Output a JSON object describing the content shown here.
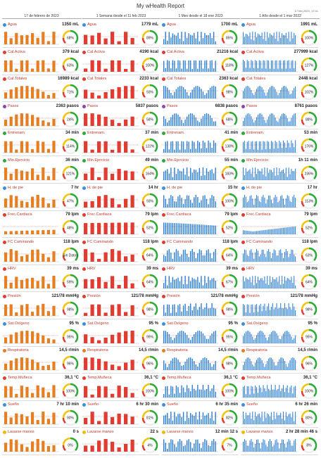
{
  "header": {
    "title": "My wHealth Report",
    "date": "17 feb 2023, 17:41"
  },
  "columns": [
    "17 de febrero de 2023",
    "1 Semana desde el 11 feb 2023",
    "1 Mes desde el 18 ene 2023",
    "1 Año desde el 1 mar 2022"
  ],
  "rows": [
    {
      "name": "Agua",
      "cells": [
        {
          "value": "1350 mL",
          "pct": "68%"
        },
        {
          "value": "1779 mL",
          "pct": "89%"
        },
        {
          "value": "1700 mL",
          "pct": "85%"
        },
        {
          "value": "1991 mL",
          "pct": "100%"
        }
      ]
    },
    {
      "name": "Cal.Activa",
      "cells": [
        {
          "value": "379 kcal",
          "pct": "63%"
        },
        {
          "value": "4190 kcal",
          "pct": "100%"
        },
        {
          "value": "21216 kcal",
          "pct": "118%"
        },
        {
          "value": "277999 kcal",
          "pct": "127%"
        }
      ]
    },
    {
      "name": "Cal.Totales",
      "cells": [
        {
          "value": "16989 kcal",
          "pct": "71%"
        },
        {
          "value": "2233 kcal",
          "pct": "93%"
        },
        {
          "value": "2363 kcal",
          "pct": "98%"
        },
        {
          "value": "2448 kcal",
          "pct": "102%"
        }
      ]
    },
    {
      "name": "Pasos",
      "cells": [
        {
          "value": "2363 pasos",
          "pct": "24%"
        },
        {
          "value": "5837 pasos",
          "pct": "58%"
        },
        {
          "value": "6838 pasos",
          "pct": "68%"
        },
        {
          "value": "8761 pasos",
          "pct": "88%"
        }
      ]
    },
    {
      "name": "Entrenam.",
      "cells": [
        {
          "value": "34 min",
          "pct": "114%"
        },
        {
          "value": "37 min",
          "pct": "122%"
        },
        {
          "value": "41 min",
          "pct": "138%"
        },
        {
          "value": "53 min",
          "pct": "176%"
        }
      ]
    },
    {
      "name": "Min.Ejercicio",
      "cells": [
        {
          "value": "36 min",
          "pct": "121%"
        },
        {
          "value": "49 min",
          "pct": "164%"
        },
        {
          "value": "55 min",
          "pct": "183%"
        },
        {
          "value": "1h 11 min",
          "pct": "236%"
        }
      ]
    },
    {
      "name": "H. de pie",
      "cells": [
        {
          "value": "7 hr",
          "pct": "47%"
        },
        {
          "value": "14 hr",
          "pct": "93%"
        },
        {
          "value": "15 hr",
          "pct": "100%"
        },
        {
          "value": "17 hr",
          "pct": "113%"
        }
      ]
    },
    {
      "name": "Frec.Cardiaca",
      "cells": [
        {
          "value": "79 lpm",
          "pct": "48%"
        },
        {
          "value": "79 lpm",
          "pct": "52%"
        },
        {
          "value": "79 lpm",
          "pct": "52%"
        },
        {
          "value": "79 lpm",
          "pct": "52%"
        }
      ]
    },
    {
      "name": "FC Caminando",
      "cells": [
        {
          "value": "118 lpm",
          "pct": "Sin Datos"
        },
        {
          "value": "118 lpm",
          "pct": "64%"
        },
        {
          "value": "118 lpm",
          "pct": "64%"
        },
        {
          "value": "118 lpm",
          "pct": "63%"
        }
      ]
    },
    {
      "name": "HRV",
      "cells": [
        {
          "value": "39 ms",
          "pct": "59%"
        },
        {
          "value": "39 ms",
          "pct": "64%"
        },
        {
          "value": "39 ms",
          "pct": "67%"
        },
        {
          "value": "39 ms",
          "pct": "64%"
        }
      ]
    },
    {
      "name": "Presión",
      "cells": [
        {
          "value": "121/78 mmHg",
          "pct": "98%"
        },
        {
          "value": "121/78 mmHg",
          "pct": "98%"
        },
        {
          "value": "121/78 mmHg",
          "pct": "98%"
        },
        {
          "value": "121/78 mmHg",
          "pct": "98%"
        }
      ]
    },
    {
      "name": "Sat.Oxígeno",
      "cells": [
        {
          "value": "95 %",
          "pct": "95%"
        },
        {
          "value": "95 %",
          "pct": "95%"
        },
        {
          "value": "95 %",
          "pct": "95%"
        },
        {
          "value": "95 %",
          "pct": "95%"
        }
      ]
    },
    {
      "name": "Respiratoria",
      "cells": [
        {
          "value": "14,5 r/min",
          "pct": "96%"
        },
        {
          "value": "14,5 r/min",
          "pct": "96%"
        },
        {
          "value": "14,5 r/min",
          "pct": "98%"
        },
        {
          "value": "14,5 r/min",
          "pct": "96%"
        }
      ]
    },
    {
      "name": "Temp.Muñeca",
      "cells": [
        {
          "value": "36,1 °C",
          "pct": "100%"
        },
        {
          "value": "36,1 °C",
          "pct": "100%"
        },
        {
          "value": "36,1 °C",
          "pct": "100%"
        },
        {
          "value": "36,1 °C",
          "pct": "100%"
        }
      ]
    },
    {
      "name": "Sueño",
      "cells": [
        {
          "value": "7 hr 10 min",
          "pct": "90%"
        },
        {
          "value": "6 hr 30 min",
          "pct": "81%"
        },
        {
          "value": "6 hr 35 min",
          "pct": "82%"
        },
        {
          "value": "6 hr 26 min",
          "pct": "80%"
        }
      ]
    },
    {
      "name": "Lavarse manos",
      "cells": [
        {
          "value": "0 s",
          "pct": "0%"
        },
        {
          "value": "22 s",
          "pct": "4%"
        },
        {
          "value": "12 min 12 s",
          "pct": "7%"
        },
        {
          "value": "2 hr 28 min 46 s",
          "pct": "8%"
        }
      ]
    }
  ]
}
